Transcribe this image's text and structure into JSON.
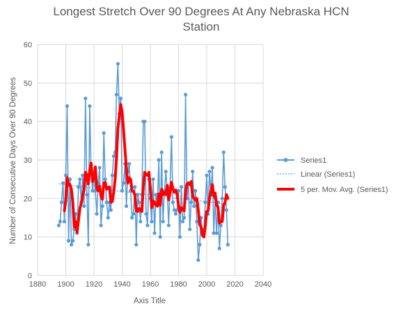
{
  "chart_data": {
    "type": "line",
    "title_line1": "Longest Stretch Over 90 Degrees At Any Nebraska HCN",
    "title_line2": "Station",
    "xlabel": "Axis Title",
    "ylabel": "Number of Consecutive Days Over 90 Degrees",
    "xlim": [
      1880,
      2040
    ],
    "ylim": [
      0,
      60
    ],
    "xticks": [
      1880,
      1900,
      1920,
      1940,
      1960,
      1980,
      2000,
      2020,
      2040
    ],
    "yticks": [
      0,
      10,
      20,
      30,
      40,
      50,
      60
    ],
    "grid": "horizontal and vertical",
    "legend_position": "right",
    "legend": [
      "Series1",
      "Linear (Series1)",
      "5 per. Mov. Avg. (Series1)"
    ],
    "colors": {
      "series": "#5B9BD5",
      "trendline": "#5B9BD5",
      "moving_average": "#FF0000",
      "grid": "#D9D9D9",
      "text": "#595959"
    },
    "series": [
      {
        "name": "Series1",
        "x": [
          1895,
          1896,
          1897,
          1898,
          1899,
          1900,
          1901,
          1902,
          1903,
          1904,
          1905,
          1906,
          1907,
          1908,
          1909,
          1910,
          1911,
          1912,
          1913,
          1914,
          1915,
          1916,
          1917,
          1918,
          1919,
          1920,
          1921,
          1922,
          1923,
          1924,
          1925,
          1926,
          1927,
          1928,
          1929,
          1930,
          1931,
          1932,
          1933,
          1934,
          1935,
          1936,
          1937,
          1938,
          1939,
          1940,
          1941,
          1942,
          1943,
          1944,
          1945,
          1946,
          1947,
          1948,
          1949,
          1950,
          1951,
          1952,
          1953,
          1954,
          1955,
          1956,
          1957,
          1958,
          1959,
          1960,
          1961,
          1962,
          1963,
          1964,
          1965,
          1966,
          1967,
          1968,
          1969,
          1970,
          1971,
          1972,
          1973,
          1974,
          1975,
          1976,
          1977,
          1978,
          1979,
          1980,
          1981,
          1982,
          1983,
          1984,
          1985,
          1986,
          1987,
          1988,
          1989,
          1990,
          1991,
          1992,
          1993,
          1994,
          1995,
          1996,
          1997,
          1998,
          1999,
          2000,
          2001,
          2002,
          2003,
          2004,
          2005,
          2006,
          2007,
          2008,
          2009,
          2010,
          2011,
          2012,
          2013,
          2014,
          2015
        ],
        "values": [
          13,
          14,
          19,
          24,
          14,
          26,
          44,
          9,
          25,
          8,
          9,
          12,
          16,
          11,
          23,
          25,
          19,
          26,
          18,
          46,
          21,
          8,
          44,
          27,
          22,
          26,
          22,
          16,
          24,
          28,
          13,
          18,
          37,
          25,
          19,
          15,
          19,
          17,
          26,
          31,
          32,
          47,
          55,
          42,
          46,
          22,
          24,
          29,
          18,
          27,
          29,
          22,
          15,
          16,
          23,
          8,
          21,
          19,
          14,
          21,
          40,
          40,
          16,
          13,
          25,
          20,
          14,
          25,
          11,
          21,
          19,
          30,
          10,
          32,
          14,
          22,
          27,
          22,
          13,
          23,
          36,
          19,
          17,
          16,
          17,
          22,
          10,
          23,
          14,
          15,
          47,
          20,
          24,
          12,
          19,
          27,
          18,
          22,
          14,
          4,
          8,
          15,
          11,
          12,
          19,
          26,
          16,
          27,
          21,
          28,
          11,
          20,
          11,
          19,
          7,
          13,
          20,
          32,
          23,
          17,
          8
        ]
      },
      {
        "name": "Linear (Series1)",
        "x": [
          1895,
          2015
        ],
        "values": [
          23.8,
          18.5
        ]
      },
      {
        "name": "5 per. Mov. Avg. (Series1)",
        "window": 5
      }
    ]
  }
}
